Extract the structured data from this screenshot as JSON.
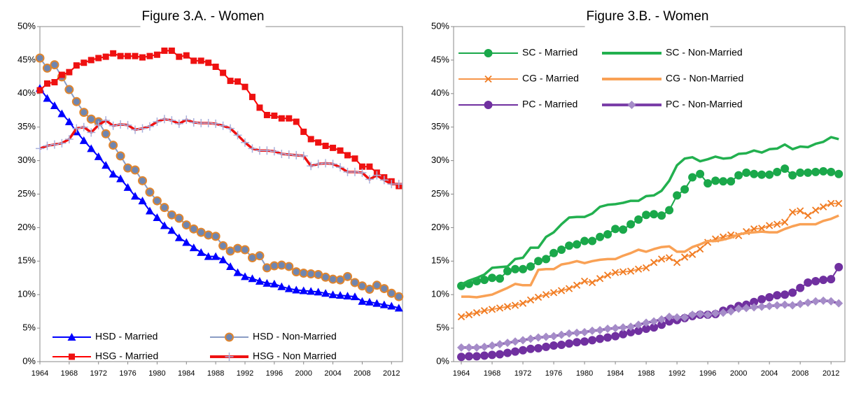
{
  "chart_data": [
    {
      "type": "line",
      "title": "Figure 3.A. - Women",
      "x": [
        1964,
        1965,
        1966,
        1967,
        1968,
        1969,
        1970,
        1971,
        1972,
        1973,
        1974,
        1975,
        1976,
        1977,
        1978,
        1979,
        1980,
        1981,
        1982,
        1983,
        1984,
        1985,
        1986,
        1987,
        1988,
        1989,
        1990,
        1991,
        1992,
        1993,
        1994,
        1995,
        1996,
        1997,
        1998,
        1999,
        2000,
        2001,
        2002,
        2003,
        2004,
        2005,
        2006,
        2007,
        2008,
        2009,
        2010,
        2011,
        2012,
        2013
      ],
      "xlim": [
        1964,
        2013.5
      ],
      "xticks": [
        1964,
        1968,
        1972,
        1976,
        1980,
        1984,
        1988,
        1992,
        1996,
        2000,
        2004,
        2008,
        2012
      ],
      "ylim": [
        0,
        50
      ],
      "yticks": [
        {
          "value": 0,
          "label": "0%"
        },
        {
          "value": 5,
          "label": "5%"
        },
        {
          "value": 10,
          "label": "10%"
        },
        {
          "value": 15,
          "label": "15%"
        },
        {
          "value": 20,
          "label": "20%"
        },
        {
          "value": 25,
          "label": "25%"
        },
        {
          "value": 30,
          "label": "30%"
        },
        {
          "value": 35,
          "label": "35%"
        },
        {
          "value": 40,
          "label": "40%"
        },
        {
          "value": 45,
          "label": "45%"
        },
        {
          "value": 50,
          "label": "50%"
        }
      ],
      "legend": "lower center",
      "series": [
        {
          "name": "HSD - Married",
          "color": "#0000ff",
          "marker": "triangle",
          "marker_color": "#0000ff",
          "values": [
            40.8,
            39.3,
            38.2,
            37.0,
            35.8,
            34.3,
            33.0,
            31.8,
            30.6,
            29.3,
            28.0,
            27.3,
            26.0,
            24.7,
            24.0,
            22.5,
            21.5,
            20.3,
            19.6,
            18.5,
            17.8,
            17.0,
            16.3,
            15.7,
            15.7,
            15.2,
            14.2,
            13.3,
            12.7,
            12.4,
            12.0,
            11.7,
            11.6,
            11.2,
            10.9,
            10.7,
            10.6,
            10.5,
            10.4,
            10.2,
            10.0,
            9.9,
            9.8,
            9.7,
            9.0,
            8.9,
            8.7,
            8.5,
            8.3,
            8.0
          ]
        },
        {
          "name": "HSD - Non-Married",
          "color": "#8a9cc4",
          "marker": "circle",
          "marker_color": "#6f86b0",
          "marker_edge": "#e0852e",
          "values": [
            45.3,
            43.8,
            44.3,
            42.5,
            40.6,
            38.8,
            37.2,
            36.2,
            35.8,
            34.0,
            32.3,
            30.7,
            28.9,
            28.6,
            27.0,
            25.3,
            24.0,
            23.0,
            21.9,
            21.4,
            20.4,
            19.8,
            19.3,
            18.9,
            18.7,
            17.3,
            16.5,
            16.9,
            16.7,
            15.5,
            15.8,
            14.0,
            14.3,
            14.4,
            14.2,
            13.4,
            13.2,
            13.1,
            13.0,
            12.6,
            12.3,
            12.2,
            12.7,
            11.8,
            11.3,
            10.8,
            11.4,
            10.9,
            10.2,
            9.7
          ]
        },
        {
          "name": "HSG - Married",
          "color": "#ff0000",
          "marker": "square",
          "marker_color": "#ee1111",
          "values": [
            40.5,
            41.5,
            41.7,
            42.8,
            43.2,
            44.2,
            44.6,
            45.0,
            45.3,
            45.5,
            46.0,
            45.6,
            45.6,
            45.6,
            45.4,
            45.6,
            45.8,
            46.4,
            46.4,
            45.5,
            45.7,
            44.9,
            44.9,
            44.6,
            44.0,
            43.1,
            41.9,
            41.8,
            41.0,
            39.5,
            37.9,
            36.8,
            36.7,
            36.3,
            36.3,
            35.8,
            34.3,
            33.2,
            32.7,
            32.2,
            31.9,
            31.5,
            30.8,
            30.3,
            29.1,
            29.1,
            28.2,
            27.5,
            26.9,
            26.2
          ]
        },
        {
          "name": "HSG - Non Married",
          "color": "#ee1111",
          "marker": "plus",
          "marker_color": "#a8b0dc",
          "values": [
            31.8,
            32.2,
            32.4,
            32.6,
            33.2,
            34.8,
            35.0,
            34.2,
            35.3,
            36.0,
            35.2,
            35.4,
            35.3,
            34.6,
            34.8,
            35.1,
            35.8,
            36.2,
            36.0,
            35.5,
            36.1,
            35.7,
            35.6,
            35.6,
            35.5,
            35.2,
            34.8,
            33.8,
            32.7,
            31.8,
            31.5,
            31.5,
            31.4,
            31.0,
            30.9,
            30.8,
            30.7,
            29.2,
            29.5,
            29.6,
            29.5,
            29.0,
            28.3,
            28.3,
            28.2,
            27.2,
            27.8,
            27.1,
            26.5,
            26.5
          ]
        }
      ]
    },
    {
      "type": "line",
      "title": "Figure 3.B. - Women",
      "x": [
        1964,
        1965,
        1966,
        1967,
        1968,
        1969,
        1970,
        1971,
        1972,
        1973,
        1974,
        1975,
        1976,
        1977,
        1978,
        1979,
        1980,
        1981,
        1982,
        1983,
        1984,
        1985,
        1986,
        1987,
        1988,
        1989,
        1990,
        1991,
        1992,
        1993,
        1994,
        1995,
        1996,
        1997,
        1998,
        1999,
        2000,
        2001,
        2002,
        2003,
        2004,
        2005,
        2006,
        2007,
        2008,
        2009,
        2010,
        2011,
        2012,
        2013
      ],
      "xlim": [
        1963,
        2013.8
      ],
      "xticks": [
        1964,
        1968,
        1972,
        1976,
        1980,
        1984,
        1988,
        1992,
        1996,
        2000,
        2004,
        2008,
        2012
      ],
      "ylim": [
        0,
        50
      ],
      "yticks": [
        {
          "value": 0,
          "label": "0%"
        },
        {
          "value": 5,
          "label": "5%"
        },
        {
          "value": 10,
          "label": "10%"
        },
        {
          "value": 15,
          "label": "15%"
        },
        {
          "value": 20,
          "label": "20%"
        },
        {
          "value": 25,
          "label": "25%"
        },
        {
          "value": 30,
          "label": "30%"
        },
        {
          "value": 35,
          "label": "35%"
        },
        {
          "value": 40,
          "label": "40%"
        },
        {
          "value": 45,
          "label": "45%"
        },
        {
          "value": 50,
          "label": "50%"
        }
      ],
      "legend": "upper left",
      "series": [
        {
          "name": "SC - Married",
          "color": "#1aa84a",
          "marker": "circle",
          "marker_color": "#1aa84a",
          "values": [
            11.3,
            11.6,
            12.0,
            12.2,
            12.5,
            12.4,
            13.5,
            13.8,
            13.8,
            14.2,
            15.0,
            15.3,
            16.2,
            16.7,
            17.3,
            17.5,
            18.0,
            18.0,
            18.6,
            19.0,
            19.8,
            19.7,
            20.5,
            21.2,
            21.9,
            22.0,
            21.8,
            22.6,
            24.8,
            25.7,
            27.5,
            28.0,
            26.6,
            27.0,
            26.9,
            26.9,
            27.8,
            28.2,
            28.0,
            27.9,
            27.9,
            28.3,
            28.8,
            27.8,
            28.2,
            28.2,
            28.3,
            28.4,
            28.3,
            28.0
          ]
        },
        {
          "name": "SC - Non-Married",
          "color": "#22b04f",
          "marker": "none",
          "values": [
            11.5,
            12.1,
            12.5,
            13.0,
            14.0,
            14.1,
            14.2,
            15.3,
            15.5,
            17.0,
            17.0,
            18.6,
            19.3,
            20.5,
            21.5,
            21.6,
            21.6,
            22.1,
            23.1,
            23.4,
            23.5,
            23.7,
            24.0,
            24.0,
            24.7,
            24.8,
            25.5,
            27.0,
            29.3,
            30.3,
            30.5,
            29.9,
            30.2,
            30.6,
            30.3,
            30.4,
            31.0,
            31.1,
            31.5,
            31.2,
            31.7,
            31.8,
            32.4,
            31.7,
            32.1,
            32.0,
            32.5,
            32.8,
            33.5,
            33.2
          ]
        },
        {
          "name": "CG - Married",
          "color": "#f7964a",
          "marker": "x",
          "marker_color": "#f07a20",
          "values": [
            6.7,
            7.0,
            7.3,
            7.6,
            7.8,
            8.0,
            8.2,
            8.4,
            8.7,
            9.2,
            9.6,
            10.0,
            10.3,
            10.6,
            10.9,
            11.4,
            12.0,
            11.8,
            12.4,
            12.9,
            13.3,
            13.4,
            13.5,
            13.8,
            14.0,
            14.8,
            15.3,
            15.5,
            14.8,
            15.6,
            16.0,
            16.8,
            17.8,
            18.3,
            18.6,
            18.9,
            18.8,
            19.4,
            19.8,
            19.9,
            20.3,
            20.5,
            20.8,
            22.3,
            22.5,
            21.8,
            22.6,
            23.1,
            23.6,
            23.6
          ]
        },
        {
          "name": "CG - Non-Married",
          "color": "#f9a155",
          "marker": "none",
          "values": [
            9.7,
            9.7,
            9.6,
            9.8,
            10.0,
            10.5,
            11.0,
            11.6,
            11.4,
            11.4,
            13.7,
            13.8,
            13.8,
            14.5,
            14.7,
            15.0,
            14.7,
            15.0,
            15.2,
            15.3,
            15.3,
            15.8,
            16.2,
            16.7,
            16.4,
            16.8,
            17.1,
            17.2,
            16.4,
            16.4,
            17.1,
            17.5,
            18.0,
            18.0,
            18.2,
            18.5,
            19.0,
            19.2,
            19.3,
            19.4,
            19.3,
            19.3,
            19.8,
            20.2,
            20.5,
            20.5,
            20.5,
            21.0,
            21.3,
            21.8
          ]
        },
        {
          "name": "PC - Married",
          "color": "#7030a0",
          "marker": "circle",
          "marker_color": "#7030a0",
          "values": [
            0.7,
            0.8,
            0.8,
            0.9,
            1.0,
            1.1,
            1.3,
            1.5,
            1.7,
            1.9,
            2.0,
            2.2,
            2.4,
            2.5,
            2.7,
            2.9,
            3.0,
            3.2,
            3.4,
            3.6,
            3.8,
            4.1,
            4.4,
            4.6,
            4.9,
            5.1,
            5.5,
            6.0,
            6.2,
            6.5,
            6.8,
            7.0,
            7.0,
            7.1,
            7.6,
            7.9,
            8.3,
            8.5,
            8.9,
            9.3,
            9.6,
            9.9,
            10.0,
            10.3,
            11.0,
            11.8,
            12.0,
            12.2,
            12.3,
            14.1
          ]
        },
        {
          "name": "PC - Non-Married",
          "color": "#7b3fa8",
          "marker": "diamond",
          "marker_color": "#a58cc8",
          "values": [
            2.1,
            2.1,
            2.1,
            2.2,
            2.4,
            2.6,
            2.8,
            3.0,
            3.2,
            3.4,
            3.6,
            3.7,
            3.8,
            4.0,
            4.2,
            4.3,
            4.4,
            4.6,
            4.7,
            4.9,
            5.0,
            5.1,
            5.2,
            5.5,
            5.8,
            6.0,
            6.3,
            6.7,
            6.6,
            6.6,
            7.0,
            7.1,
            7.0,
            7.2,
            7.3,
            7.5,
            7.9,
            8.0,
            8.1,
            8.2,
            8.3,
            8.4,
            8.5,
            8.4,
            8.6,
            8.8,
            9.0,
            9.1,
            9.0,
            8.7
          ]
        }
      ]
    }
  ]
}
